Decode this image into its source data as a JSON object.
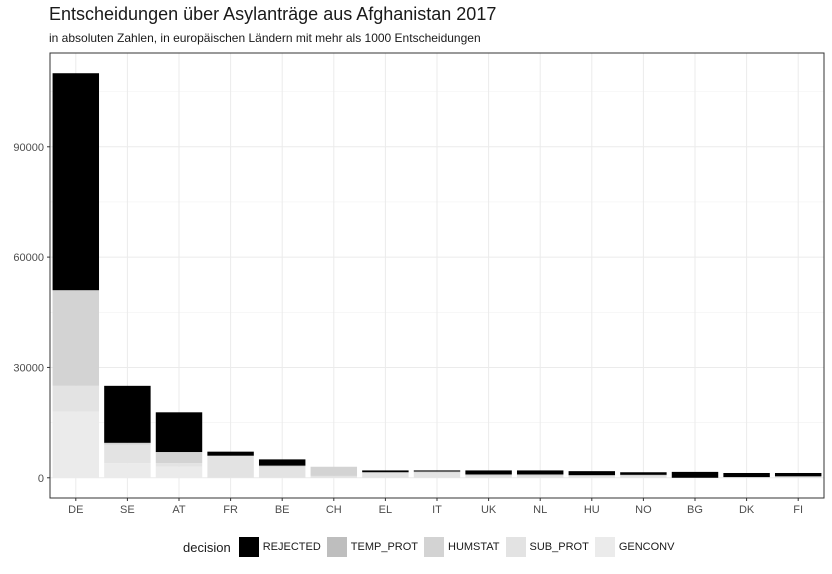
{
  "chart_data": {
    "type": "bar",
    "stacked": true,
    "title": "Entscheidungen über Asylanträge aus Afghanistan 2017",
    "subtitle": "in absoluten Zahlen, in europäischen Ländern mit mehr als 1000 Entscheidungen",
    "xlabel": "",
    "ylabel": "",
    "ylim": [
      0,
      110000
    ],
    "yticks": [
      0,
      30000,
      60000,
      90000
    ],
    "ytick_labels": [
      "0",
      "30000",
      "60000",
      "90000"
    ],
    "grid": true,
    "legend_title": "decision",
    "legend_position": "bottom",
    "categories": [
      "DE",
      "SE",
      "AT",
      "FR",
      "BE",
      "CH",
      "EL",
      "IT",
      "UK",
      "NL",
      "HU",
      "NO",
      "BG",
      "DK",
      "FI"
    ],
    "series": [
      {
        "name": "GENCONV",
        "color": "#ebebeb",
        "values": [
          18000,
          4000,
          3000,
          0,
          0,
          0,
          0,
          0,
          0,
          0,
          0,
          0,
          0,
          0,
          0
        ]
      },
      {
        "name": "SUB_PROT",
        "color": "#e3e3e3",
        "values": [
          7000,
          5000,
          1000,
          6000,
          3000,
          500,
          1500,
          1400,
          600,
          600,
          700,
          500,
          0,
          0,
          200
        ]
      },
      {
        "name": "HUMSTAT",
        "color": "#d3d3d3",
        "values": [
          26000,
          500,
          3000,
          0,
          300,
          2500,
          0,
          300,
          300,
          300,
          0,
          300,
          0,
          200,
          200
        ]
      },
      {
        "name": "TEMP_PROT",
        "color": "#bebebe",
        "values": [
          0,
          0,
          0,
          0,
          0,
          0,
          0,
          0,
          0,
          0,
          0,
          0,
          0,
          0,
          0
        ]
      },
      {
        "name": "REJECTED",
        "color": "#000000",
        "values": [
          59000,
          15500,
          10800,
          1100,
          1700,
          0,
          500,
          300,
          1100,
          1100,
          1100,
          700,
          1600,
          1100,
          900
        ]
      }
    ]
  }
}
